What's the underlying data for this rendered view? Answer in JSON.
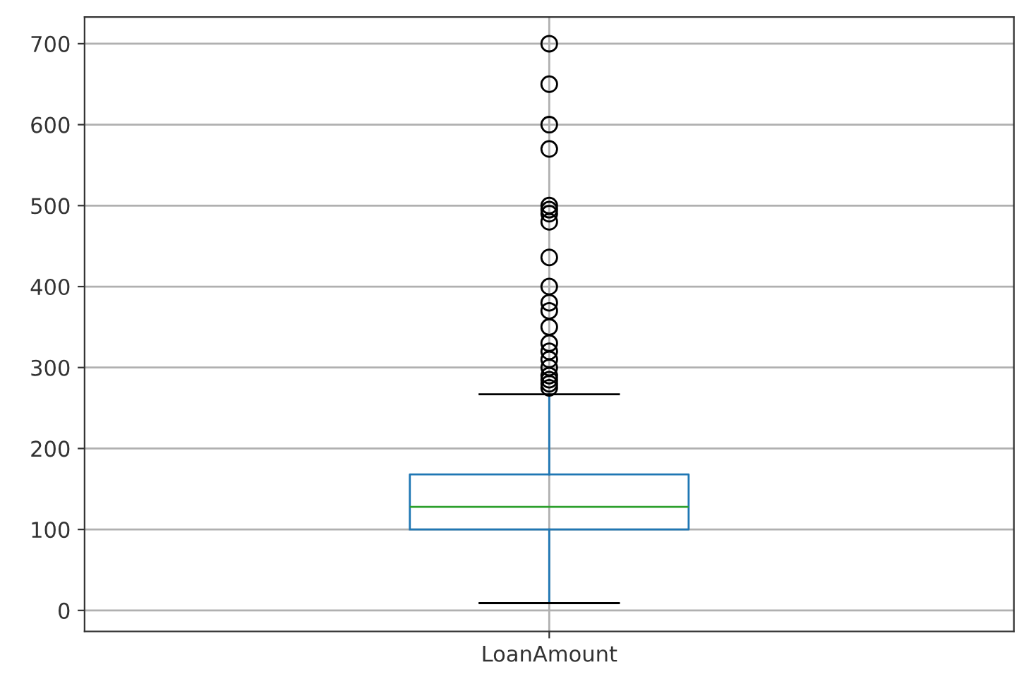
{
  "chart_data": {
    "type": "box",
    "categories": [
      "LoanAmount"
    ],
    "boxes": [
      {
        "low": 9,
        "q1": 100,
        "median": 128,
        "q3": 168,
        "high": 267,
        "outliers": [
          275,
          280,
          285,
          290,
          300,
          310,
          320,
          330,
          350,
          370,
          380,
          400,
          436,
          480,
          490,
          495,
          500,
          570,
          600,
          650,
          700
        ]
      }
    ],
    "color": "#1f77b4",
    "ylim": [
      -26,
      733
    ],
    "yticks": [
      0,
      100,
      200,
      300,
      400,
      500,
      600,
      700
    ],
    "grid": true
  }
}
